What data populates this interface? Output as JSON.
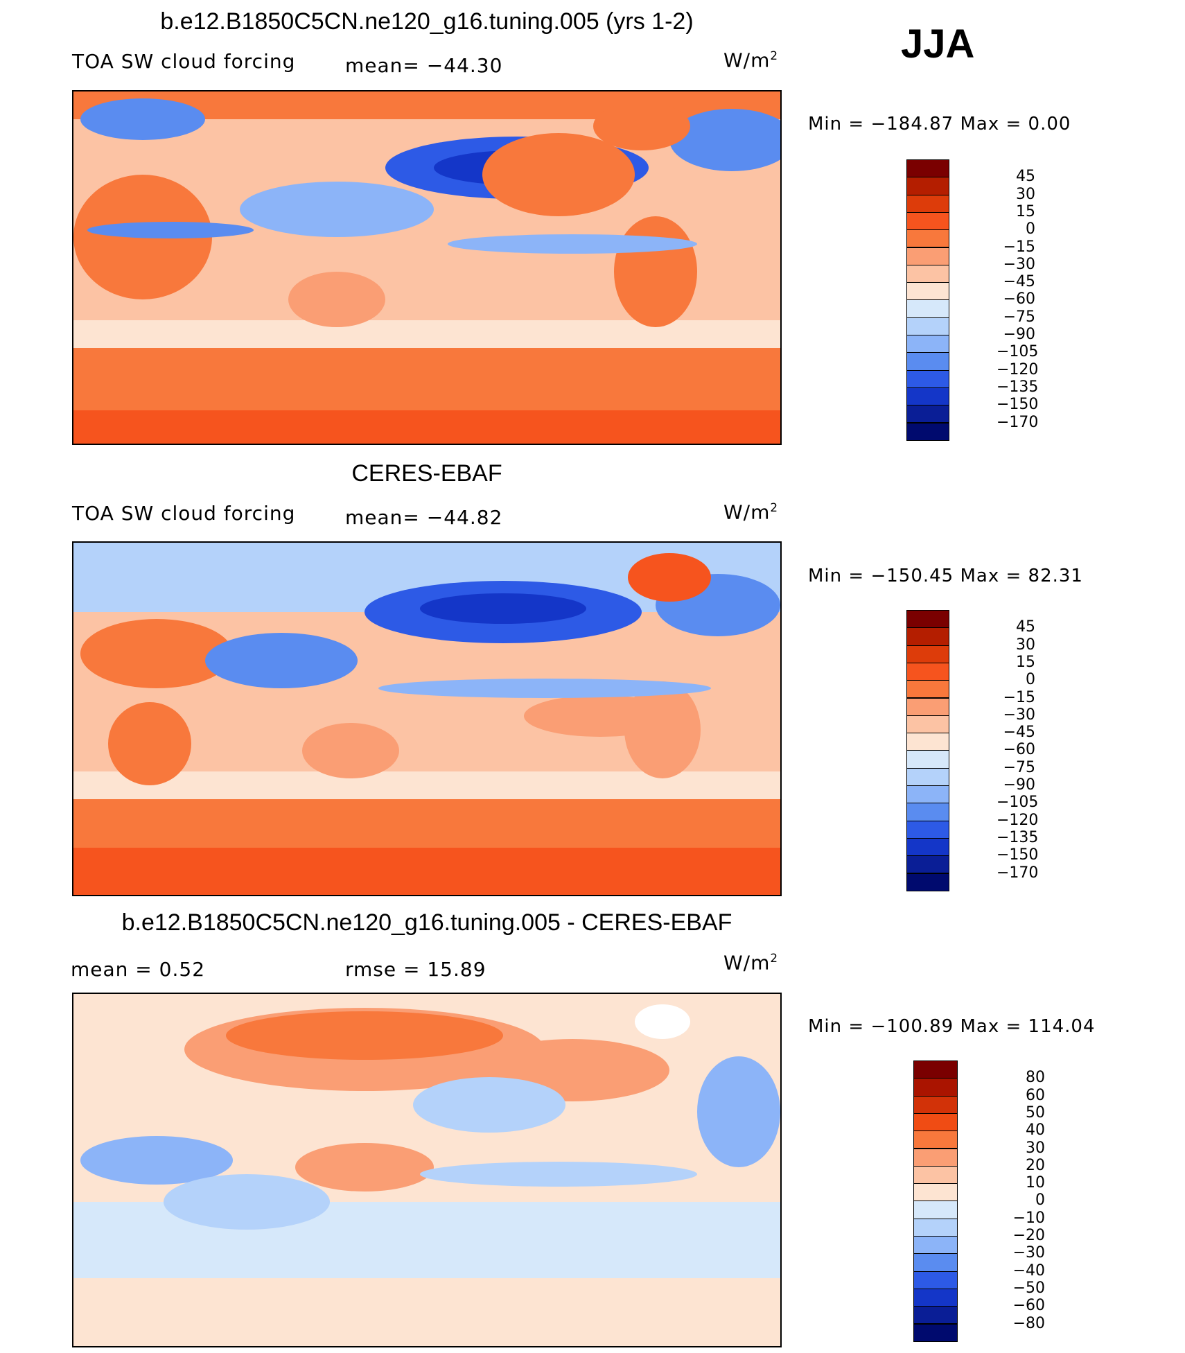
{
  "season": "JJA",
  "panels": [
    {
      "title": "b.e12.B1850C5CN.ne120_g16.tuning.005 (yrs 1-2)",
      "left_label": "TOA SW cloud forcing",
      "mid_label": "mean=  −44.30",
      "right_label": "W/m",
      "right_label_sup": "2",
      "minmax": "Min  =  −184.87  Max  =     0.00",
      "colorbar": {
        "labels": [
          "45",
          "30",
          "15",
          "0",
          "−15",
          "−30",
          "−45",
          "−60",
          "−75",
          "−90",
          "−105",
          "−120",
          "−135",
          "−150",
          "−170"
        ]
      }
    },
    {
      "title": "CERES-EBAF",
      "left_label": "TOA SW cloud forcing",
      "mid_label": "mean=  −44.82",
      "right_label": "W/m",
      "right_label_sup": "2",
      "minmax": "Min  =  −150.45  Max  =    82.31",
      "colorbar": {
        "labels": [
          "45",
          "30",
          "15",
          "0",
          "−15",
          "−30",
          "−45",
          "−60",
          "−75",
          "−90",
          "−105",
          "−120",
          "−135",
          "−150",
          "−170"
        ]
      }
    },
    {
      "title": "b.e12.B1850C5CN.ne120_g16.tuning.005 - CERES-EBAF",
      "left_label": "mean  =      0.52",
      "mid_label": "rmse  =     15.89",
      "right_label": "W/m",
      "right_label_sup": "2",
      "minmax": "Min  =  −100.89  Max  =  114.04",
      "colorbar": {
        "labels": [
          "80",
          "60",
          "50",
          "40",
          "30",
          "20",
          "10",
          "0",
          "−10",
          "−20",
          "−30",
          "−40",
          "−50",
          "−60",
          "−80"
        ]
      }
    }
  ],
  "colors": {
    "main_scale": [
      "#7a0000",
      "#b41e00",
      "#dd3c0a",
      "#f6541e",
      "#f8783c",
      "#fa9e74",
      "#fcc3a4",
      "#fde4d2",
      "#d6e8fa",
      "#b4d2fa",
      "#8cb4f8",
      "#5a8cf0",
      "#2d5ae6",
      "#1436c8",
      "#0a1e96",
      "#000a6e"
    ],
    "diff_scale": [
      "#7a0000",
      "#aa1400",
      "#d23208",
      "#f04c14",
      "#f8783c",
      "#fa9e74",
      "#fcc3a4",
      "#fde4d2",
      "#d6e8fa",
      "#b4d2fa",
      "#8cb4f8",
      "#5a8cf0",
      "#2d5ae6",
      "#1436c8",
      "#0a1e96",
      "#000a6e"
    ]
  },
  "chart_data": [
    {
      "type": "heatmap",
      "title": "b.e12.B1850C5CN.ne120_g16.tuning.005 (yrs 1-2)",
      "variable": "TOA SW cloud forcing",
      "units": "W/m2",
      "mean": -44.3,
      "min": -184.87,
      "max": 0.0,
      "contour_levels": [
        45,
        30,
        15,
        0,
        -15,
        -30,
        -45,
        -60,
        -75,
        -90,
        -105,
        -120,
        -135,
        -150,
        -170
      ],
      "bands": [
        {
          "lat_range": [
            -90,
            -70
          ],
          "level": 0
        },
        {
          "lat_range": [
            -70,
            -50
          ],
          "level": -15
        },
        {
          "lat_range": [
            -50,
            -30
          ],
          "level": -45
        },
        {
          "lat_range": [
            -30,
            10
          ],
          "level": -30
        },
        {
          "lat_range": [
            10,
            30
          ],
          "level": -45
        },
        {
          "lat_range": [
            30,
            60
          ],
          "level": -60
        },
        {
          "lat_range": [
            60,
            90
          ],
          "level": -30
        }
      ]
    },
    {
      "type": "heatmap",
      "title": "CERES-EBAF",
      "variable": "TOA SW cloud forcing",
      "units": "W/m2",
      "mean": -44.82,
      "min": -150.45,
      "max": 82.31,
      "contour_levels": [
        45,
        30,
        15,
        0,
        -15,
        -30,
        -45,
        -60,
        -75,
        -90,
        -105,
        -120,
        -135,
        -150,
        -170
      ],
      "bands": [
        {
          "lat_range": [
            -90,
            -70
          ],
          "level": 0
        },
        {
          "lat_range": [
            -70,
            -50
          ],
          "level": -15
        },
        {
          "lat_range": [
            -50,
            -30
          ],
          "level": -45
        },
        {
          "lat_range": [
            -30,
            10
          ],
          "level": -30
        },
        {
          "lat_range": [
            10,
            30
          ],
          "level": -60
        },
        {
          "lat_range": [
            30,
            60
          ],
          "level": -75
        },
        {
          "lat_range": [
            60,
            90
          ],
          "level": -75
        }
      ]
    },
    {
      "type": "heatmap",
      "title": "b.e12.B1850C5CN.ne120_g16.tuning.005 - CERES-EBAF",
      "units": "W/m2",
      "mean": 0.52,
      "rmse": 15.89,
      "min": -100.89,
      "max": 114.04,
      "contour_levels": [
        80,
        60,
        50,
        40,
        30,
        20,
        10,
        0,
        -10,
        -20,
        -30,
        -40,
        -50,
        -60,
        -80
      ],
      "bands": [
        {
          "lat_range": [
            -90,
            -60
          ],
          "level": 0
        },
        {
          "lat_range": [
            -60,
            -30
          ],
          "level": -10
        },
        {
          "lat_range": [
            -30,
            0
          ],
          "level": 0
        },
        {
          "lat_range": [
            0,
            30
          ],
          "level": -10
        },
        {
          "lat_range": [
            30,
            60
          ],
          "level": 10
        },
        {
          "lat_range": [
            60,
            90
          ],
          "level": 20
        }
      ]
    }
  ]
}
